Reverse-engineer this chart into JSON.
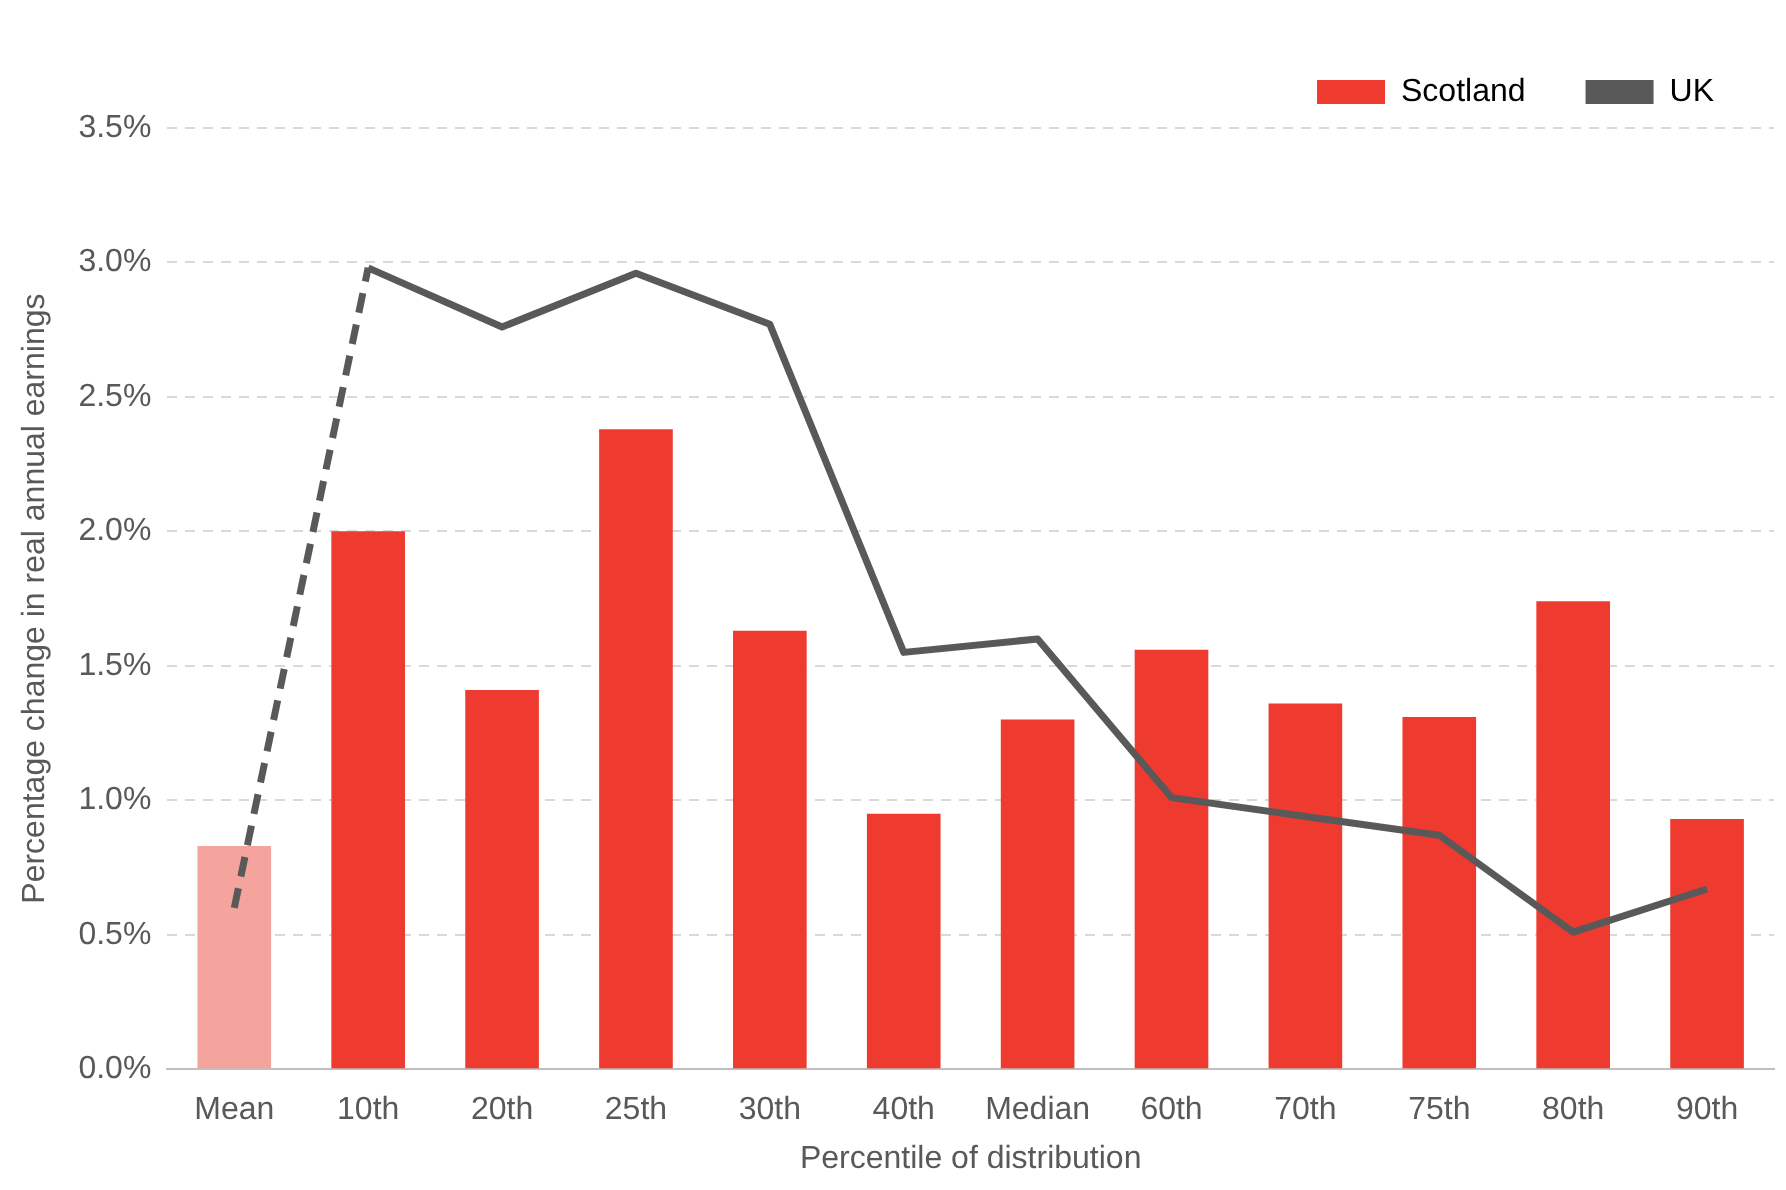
{
  "chart_data": {
    "type": "bar",
    "xlabel": "Percentile of distribution",
    "ylabel": "Percentage change in real annual earnings",
    "categories": [
      "Mean",
      "10th",
      "20th",
      "25th",
      "30th",
      "40th",
      "Median",
      "60th",
      "70th",
      "75th",
      "80th",
      "90th"
    ],
    "series": [
      {
        "name": "Scotland",
        "color": "#ee3a2f",
        "colors": [
          "#f4a49c",
          "#ee3a2f",
          "#ee3a2f",
          "#ee3a2f",
          "#ee3a2f",
          "#ee3a2f",
          "#ee3a2f",
          "#ee3a2f",
          "#ee3a2f",
          "#ee3a2f",
          "#ee3a2f",
          "#ee3a2f"
        ],
        "values": [
          0.83,
          2.0,
          1.41,
          2.38,
          1.63,
          0.95,
          1.3,
          1.56,
          1.36,
          1.31,
          1.74,
          0.93
        ]
      },
      {
        "name": "UK",
        "type": "line",
        "color": "#595959",
        "line_style": "solid",
        "values": [
          null,
          2.98,
          2.76,
          2.96,
          2.77,
          1.55,
          1.6,
          1.01,
          0.94,
          0.87,
          0.51,
          0.67
        ]
      },
      {
        "type": "line",
        "color": "#595959",
        "line_style": "dashed",
        "values": [
          0.6,
          2.98,
          null,
          null,
          null,
          null,
          null,
          null,
          null,
          null,
          null,
          null
        ]
      }
    ],
    "ylim": [
      0,
      3.5
    ],
    "yticks": [
      {
        "value": 0,
        "label": "0.0%"
      },
      {
        "value": 0.5,
        "label": "0.5%"
      },
      {
        "value": 1,
        "label": "1.0%"
      },
      {
        "value": 1.5,
        "label": "1.5%"
      },
      {
        "value": 2,
        "label": "2.0%"
      },
      {
        "value": 2.5,
        "label": "2.5%"
      },
      {
        "value": 3,
        "label": "3.0%"
      },
      {
        "value": 3.5,
        "label": "3.5%"
      }
    ],
    "grid": "y",
    "legend": "top right",
    "marker": "none"
  }
}
